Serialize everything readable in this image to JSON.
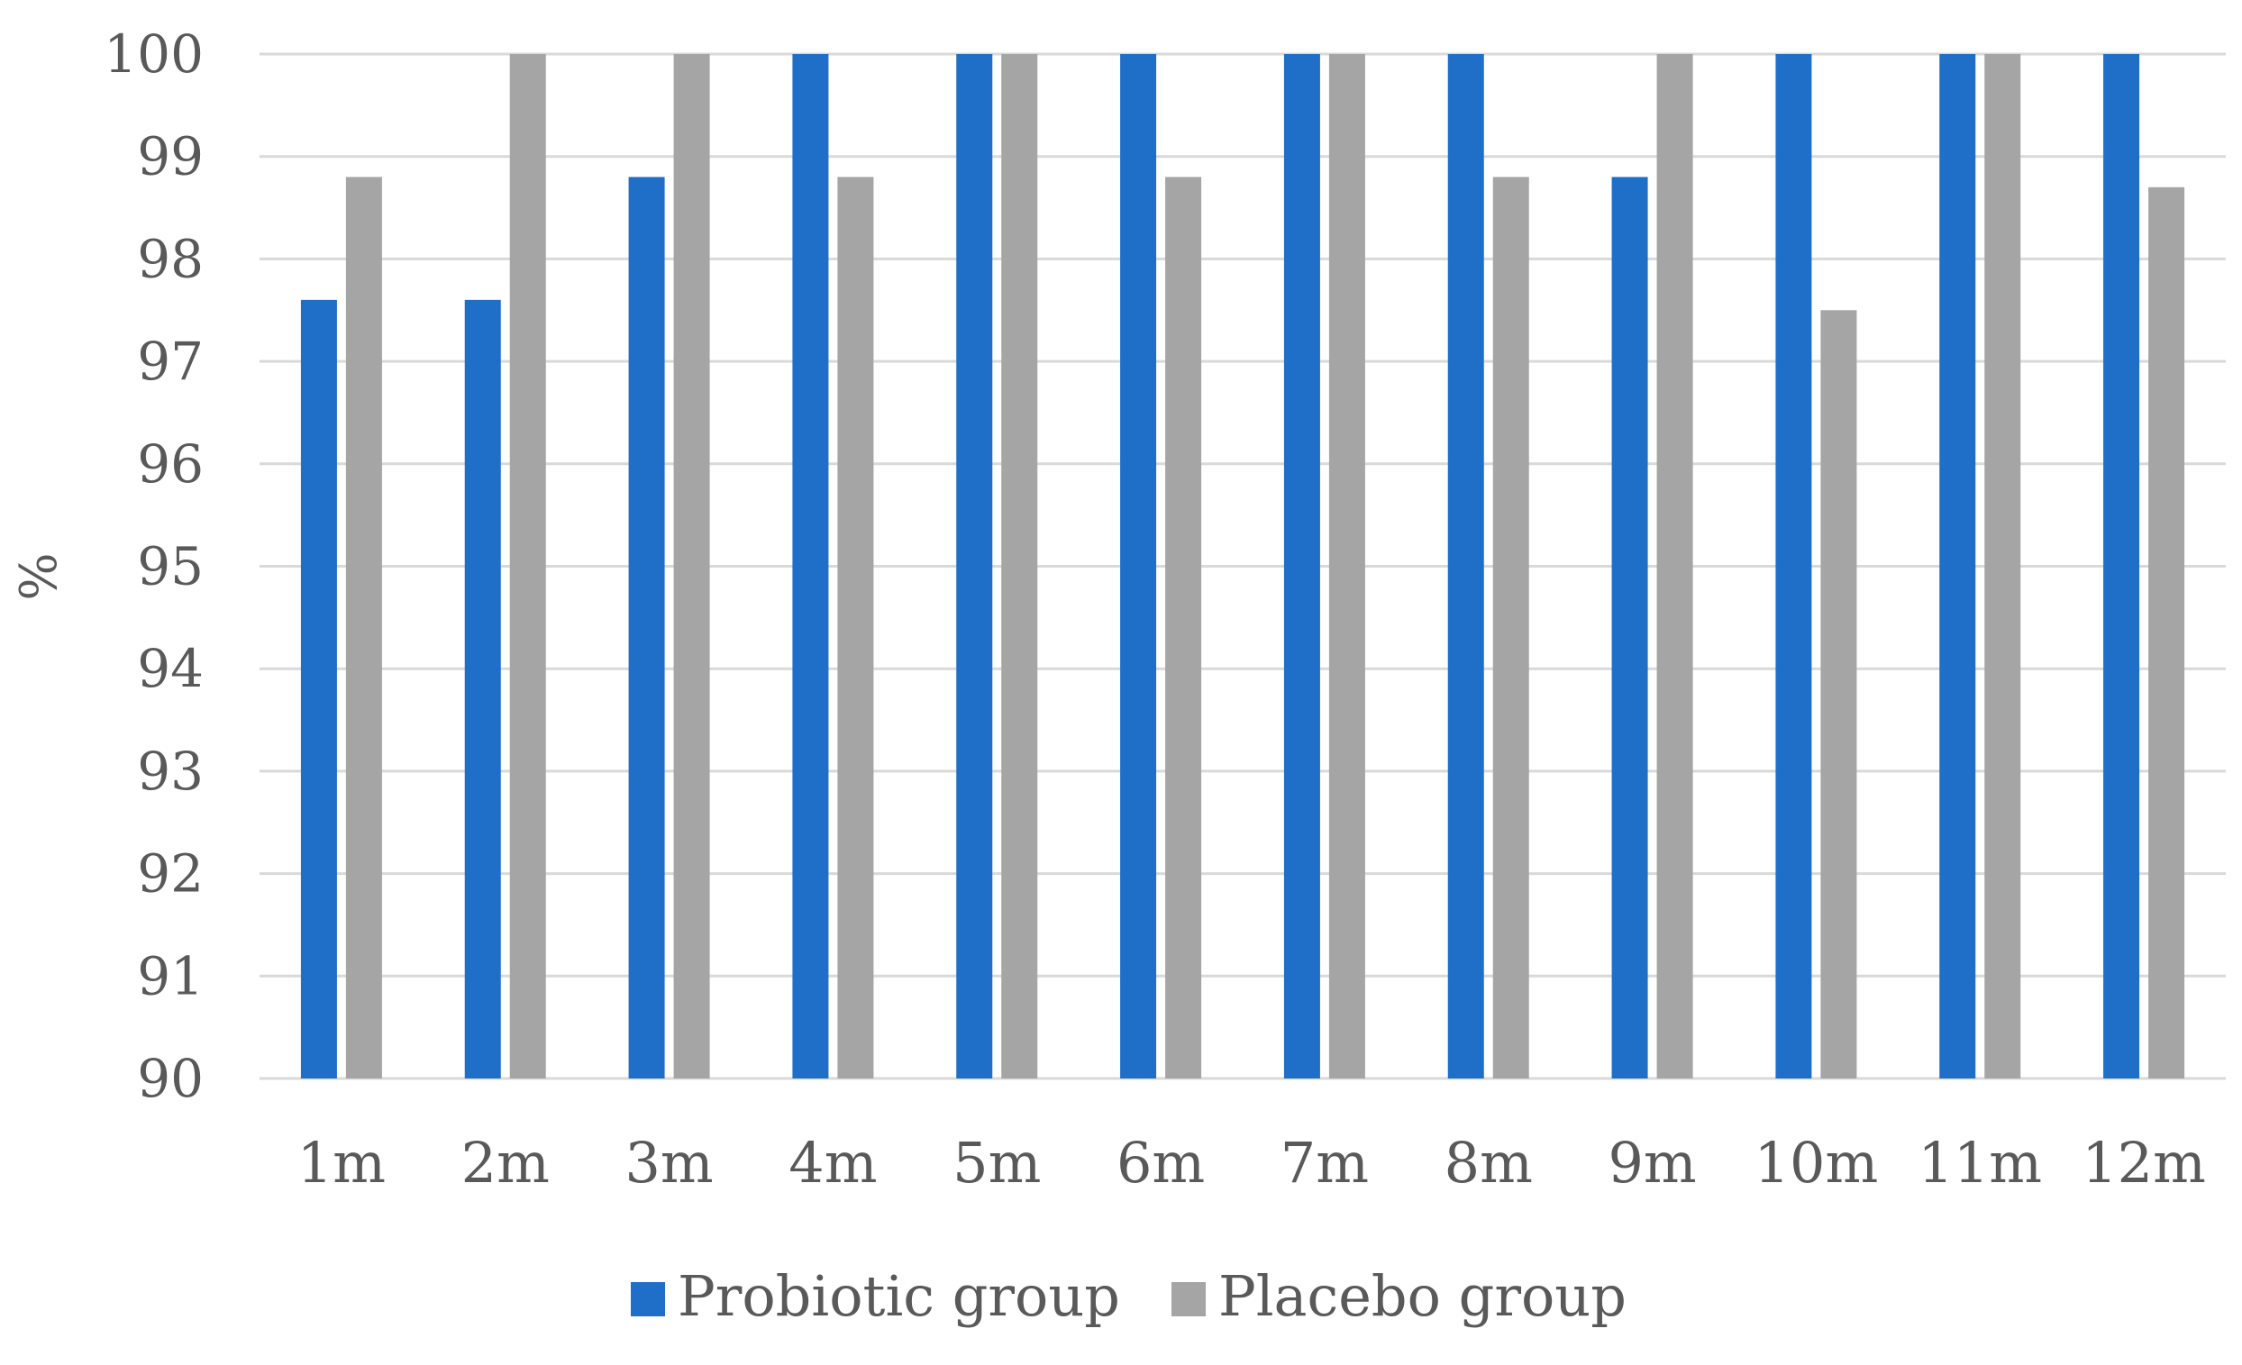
{
  "chart_data": {
    "type": "bar",
    "categories": [
      "1m",
      "2m",
      "3m",
      "4m",
      "5m",
      "6m",
      "7m",
      "8m",
      "9m",
      "10m",
      "11m",
      "12m"
    ],
    "series": [
      {
        "name": "Probiotic group",
        "color": "#1f6fc9",
        "values": [
          97.6,
          97.6,
          98.8,
          100,
          100,
          100,
          100,
          100,
          98.8,
          100,
          100,
          100
        ]
      },
      {
        "name": "Placebo group",
        "color": "#a5a5a5",
        "values": [
          98.8,
          100,
          100,
          98.8,
          100,
          98.8,
          100,
          98.8,
          100,
          97.5,
          100,
          98.7
        ]
      }
    ],
    "yticks": [
      "90",
      "91",
      "92",
      "93",
      "94",
      "95",
      "96",
      "97",
      "98",
      "99",
      "100"
    ],
    "ylim": [
      90,
      100
    ],
    "ylabel": "%",
    "xlabel": "",
    "title": "",
    "grid": true,
    "legend_position": "bottom"
  }
}
